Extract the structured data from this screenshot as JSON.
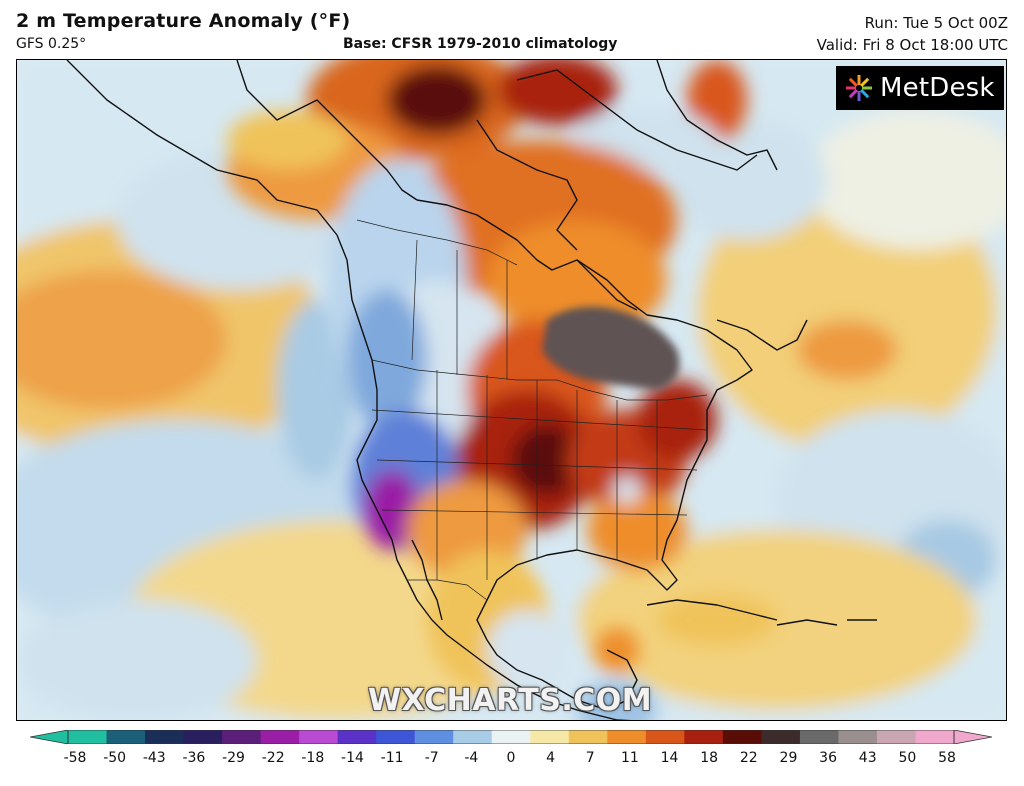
{
  "header": {
    "title": "2 m Temperature Anomaly (°F)",
    "model": "GFS 0.25°",
    "base": "Base: CFSR 1979-2010 climatology",
    "run": "Run: Tue 5 Oct 00Z",
    "valid": "Valid: Fri 8 Oct 18:00 UTC"
  },
  "logo": {
    "text": "MetDesk",
    "icon": "metdesk-starburst-icon"
  },
  "watermark": "WXCHARTS.COM",
  "legend": {
    "ticks": [
      "-58",
      "-50",
      "-43",
      "-36",
      "-29",
      "-22",
      "-18",
      "-14",
      "-11",
      "-7",
      "-4",
      "0",
      "4",
      "7",
      "11",
      "14",
      "18",
      "22",
      "29",
      "36",
      "43",
      "50",
      "58"
    ],
    "colors": [
      "#1fbf9f",
      "#1c5f78",
      "#1b2e57",
      "#2a1f5e",
      "#5b1f7a",
      "#9a1fa6",
      "#b84ad3",
      "#5a32c8",
      "#3d56d8",
      "#5e8fe0",
      "#a9cde6",
      "#eaf2f4",
      "#f6e9a8",
      "#f0c35a",
      "#ee8d2a",
      "#d9561a",
      "#a8200f",
      "#5a0d07",
      "#3b2b2b",
      "#6a6a6a",
      "#9a8f8f",
      "#caa6b3",
      "#f0a9cd"
    ]
  }
}
